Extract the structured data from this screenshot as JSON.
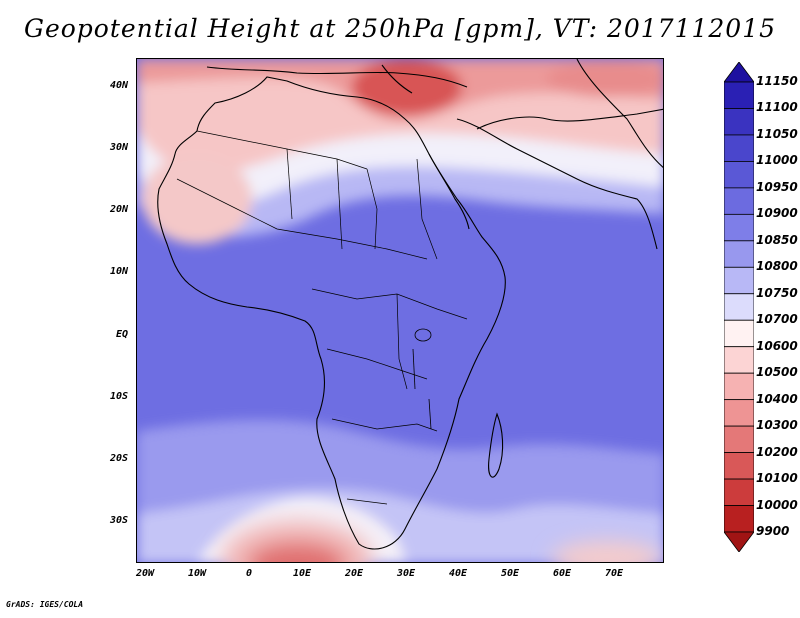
{
  "title": "Geopotential Height at 250hPa [gpm], VT: 2017112015",
  "credit": "GrADS: IGES/COLA",
  "lat_ticks": [
    "40N",
    "30N",
    "20N",
    "10N",
    "EQ",
    "10S",
    "20S",
    "30S"
  ],
  "lon_ticks": [
    "20W",
    "10W",
    "0",
    "10E",
    "20E",
    "30E",
    "40E",
    "50E",
    "60E",
    "70E"
  ],
  "colorbar": {
    "levels": [
      "11150",
      "11100",
      "11050",
      "11000",
      "10950",
      "10900",
      "10850",
      "10800",
      "10750",
      "10700",
      "10600",
      "10500",
      "10400",
      "10300",
      "10200",
      "10100",
      "10000",
      "9900"
    ],
    "colors": [
      "#1e10a0",
      "#2a20b4",
      "#3a33c0",
      "#4a46cc",
      "#5a58d6",
      "#6c6be0",
      "#7e7ee8",
      "#9898ee",
      "#b8b8f6",
      "#dcdcfc",
      "#fff2f2",
      "#fcd4d4",
      "#f6b2b2",
      "#ee9494",
      "#e47878",
      "#d95858",
      "#cc3c3c",
      "#b82020",
      "#a01414"
    ]
  },
  "colors": {
    "land_outline": "#000000",
    "tropics": "#6e6ee2",
    "belt_light": "#b6b6f4",
    "pale": "#f0eef8",
    "warm_pink": "#f6c2c2",
    "warm_red": "#e88080",
    "deep_red": "#d64848"
  }
}
